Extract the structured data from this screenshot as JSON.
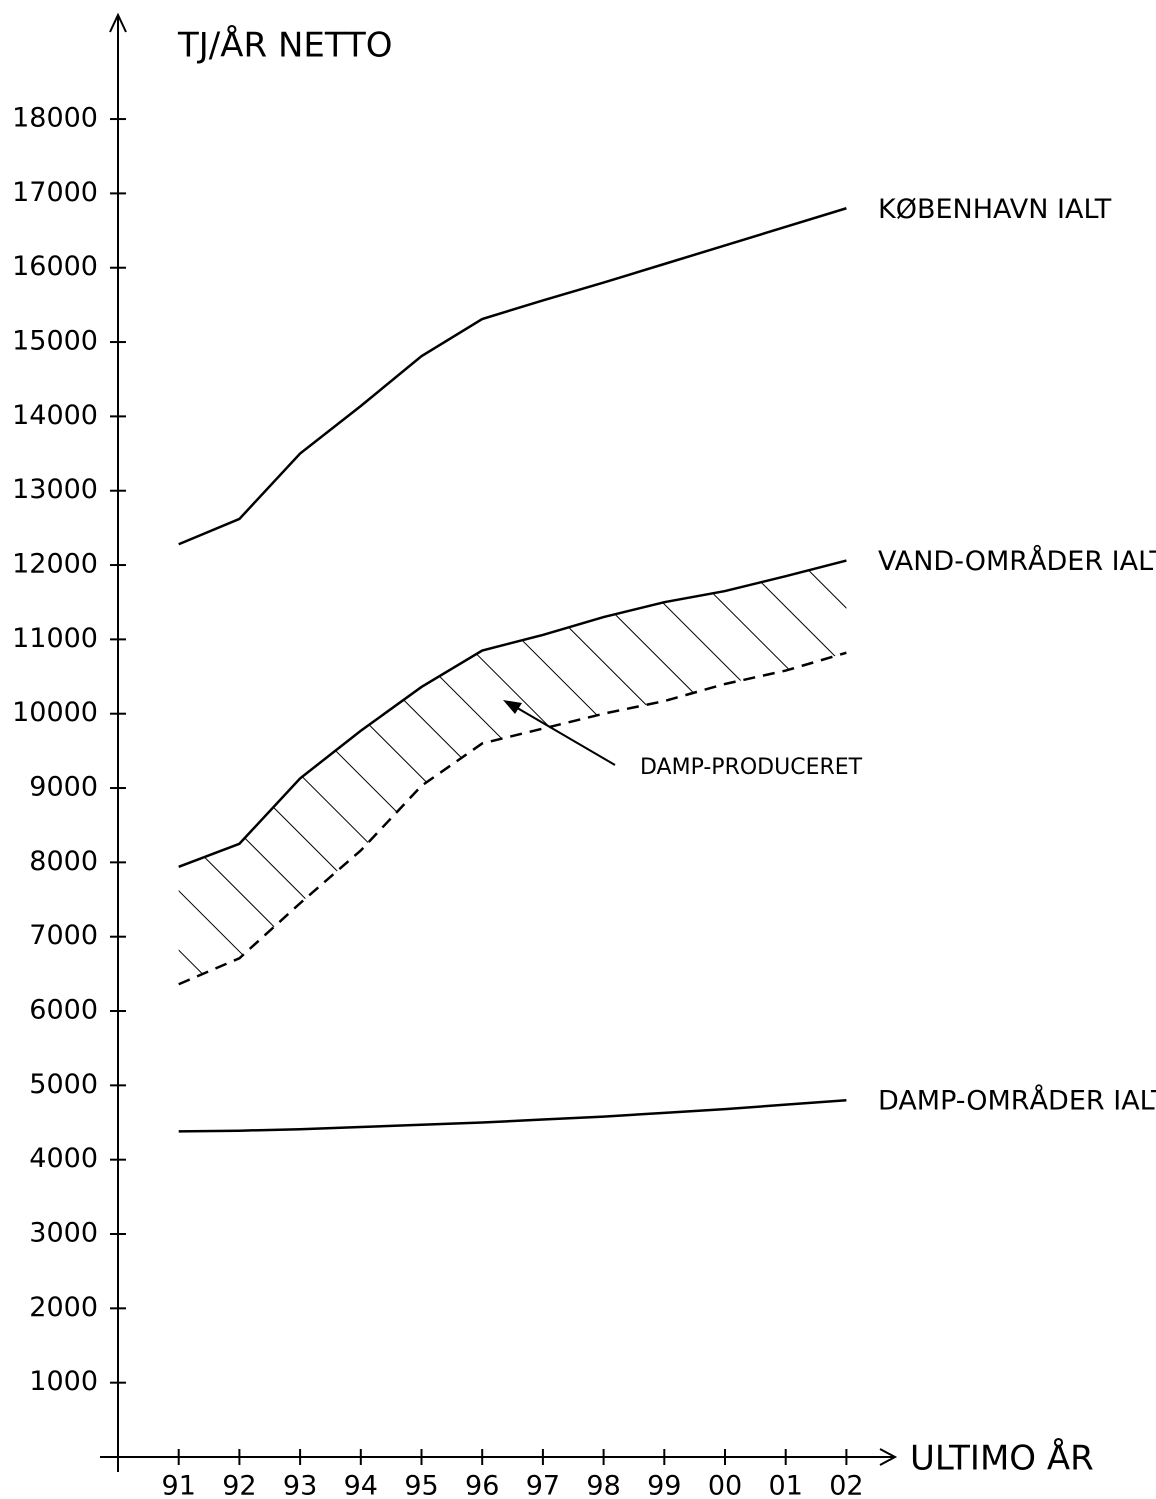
{
  "chart_data": {
    "type": "line",
    "y_label": "TJ/ÅR NETTO",
    "x_label": "ULTIMO ÅR",
    "categories": [
      "91",
      "92",
      "93",
      "94",
      "95",
      "96",
      "97",
      "98",
      "99",
      "00",
      "01",
      "02"
    ],
    "series": [
      {
        "name": "KØBENHAVN IALT",
        "color": "#000000",
        "style": "solid",
        "values": [
          12280,
          12620,
          13500,
          14140,
          14810,
          15310,
          15560,
          15800,
          16050,
          16300,
          16550,
          16800
        ]
      },
      {
        "name": "VAND-OMRÅDER IALT",
        "color": "#000000",
        "style": "solid",
        "values": [
          7940,
          8250,
          9130,
          9770,
          10360,
          10850,
          11060,
          11300,
          11500,
          11650,
          11850,
          12060
        ]
      },
      {
        "color": "#000000",
        "style": "dashed",
        "fill": "hatch",
        "values": [
          6360,
          6710,
          7450,
          8160,
          9030,
          9600,
          9800,
          10000,
          10170,
          10400,
          10580,
          10820
        ]
      },
      {
        "name": "DAMP-OMRÅDER IALT",
        "color": "#000000",
        "style": "solid",
        "values": [
          4380,
          4390,
          4410,
          4440,
          4470,
          4500,
          4540,
          4580,
          4630,
          4680,
          4740,
          4800
        ]
      }
    ],
    "annotation": {
      "text": "DAMP-PRODUCERET"
    },
    "ylim": [
      0,
      19400
    ],
    "yticks": [
      1000,
      2000,
      3000,
      4000,
      5000,
      6000,
      7000,
      8000,
      9000,
      10000,
      11000,
      12000,
      13000,
      14000,
      15000,
      16000,
      17000,
      18000
    ],
    "grid": false
  }
}
